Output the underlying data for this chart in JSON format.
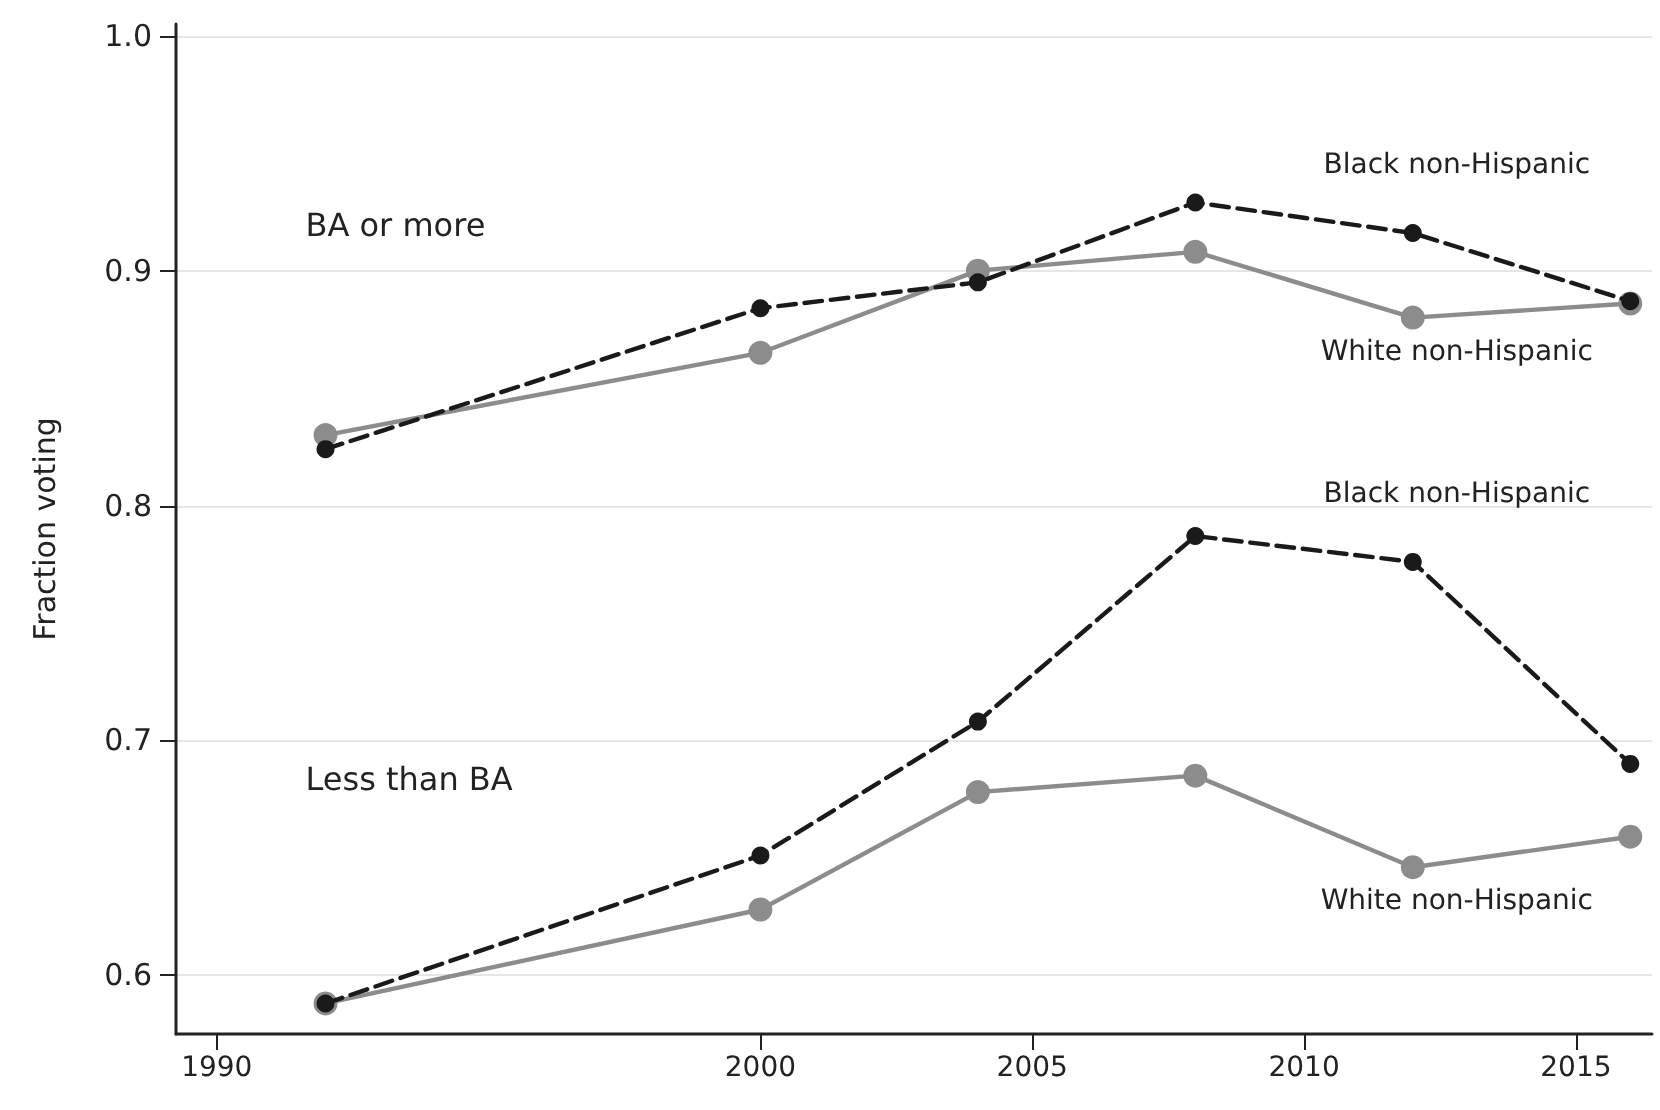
{
  "chart_data": {
    "type": "line",
    "ylabel": "Fraction voting",
    "x": [
      1992,
      2000,
      2004,
      2008,
      2012,
      2016
    ],
    "series": [
      {
        "name": "Black non-Hispanic",
        "color": "#1a1a1a",
        "line_style": "dashed",
        "values": [
          0.824,
          0.884,
          0.895,
          0.929,
          0.916,
          0.887
        ]
      },
      {
        "name": "White non-Hispanic",
        "color": "#8c8c8c",
        "line_style": "solid",
        "values": [
          0.83,
          0.865,
          0.9,
          0.908,
          0.88,
          0.886
        ]
      },
      {
        "name": "Black non-Hispanic",
        "color": "#1a1a1a",
        "line_style": "dashed",
        "values": [
          0.588,
          0.651,
          0.708,
          0.787,
          0.776,
          0.69
        ]
      },
      {
        "name": "White non-Hispanic",
        "color": "#8c8c8c",
        "line_style": "solid",
        "values": [
          0.588,
          0.628,
          0.678,
          0.685,
          0.646,
          0.659
        ]
      }
    ],
    "xlim": [
      1989.25,
      2016.4
    ],
    "xticks": [
      1990,
      2000,
      2005,
      2010,
      2015
    ],
    "ylim": [
      0.575,
      1.005
    ],
    "yticks": [
      {
        "value": 0.6,
        "label": "0.6"
      },
      {
        "value": 0.7,
        "label": "0.7"
      },
      {
        "value": 0.8,
        "label": "0.8"
      },
      {
        "value": 0.9,
        "label": "0.9"
      },
      {
        "value": 1.0,
        "label": "1.0"
      }
    ],
    "annotations": [
      "BA or more",
      "Less than BA"
    ],
    "grid": "y",
    "marker": "circle",
    "legend": false
  }
}
